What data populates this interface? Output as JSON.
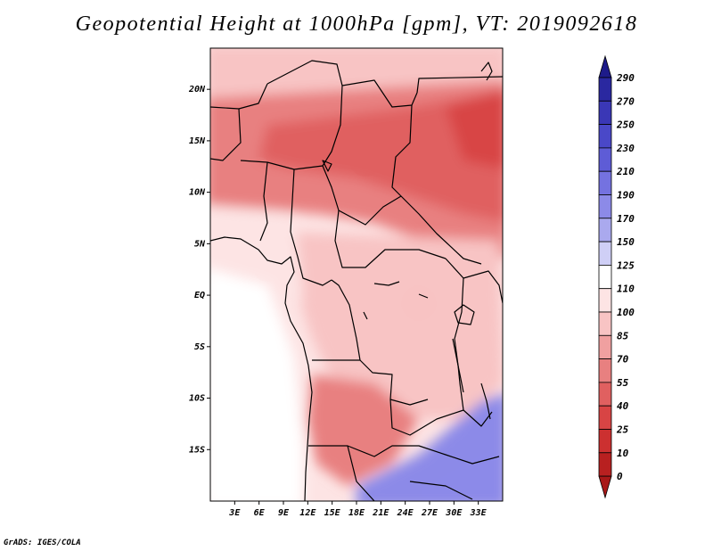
{
  "title": "Geopotential Height at 1000hPa [gpm], VT: 2019092618",
  "credit": "GrADS: IGES/COLA",
  "map": {
    "variable": "Geopotential Height at 1000hPa",
    "units": "gpm",
    "valid_time": "2019092618",
    "lon_range": [
      0,
      36
    ],
    "lat_range": [
      -20,
      24
    ],
    "lat_ticks": [
      {
        "value": 20,
        "label": "20N"
      },
      {
        "value": 15,
        "label": "15N"
      },
      {
        "value": 10,
        "label": "10N"
      },
      {
        "value": 5,
        "label": "5N"
      },
      {
        "value": 0,
        "label": "EQ"
      },
      {
        "value": -5,
        "label": "5S"
      },
      {
        "value": -10,
        "label": "10S"
      },
      {
        "value": -15,
        "label": "15S"
      }
    ],
    "lon_ticks": [
      {
        "value": 3,
        "label": "3E"
      },
      {
        "value": 6,
        "label": "6E"
      },
      {
        "value": 9,
        "label": "9E"
      },
      {
        "value": 12,
        "label": "12E"
      },
      {
        "value": 15,
        "label": "15E"
      },
      {
        "value": 18,
        "label": "18E"
      },
      {
        "value": 21,
        "label": "21E"
      },
      {
        "value": 24,
        "label": "24E"
      },
      {
        "value": 27,
        "label": "27E"
      },
      {
        "value": 30,
        "label": "30E"
      },
      {
        "value": 33,
        "label": "33E"
      }
    ]
  },
  "colorbar": {
    "levels": [
      {
        "label": "290",
        "color": "#1e1b8a"
      },
      {
        "label": "270",
        "color": "#2a28a0"
      },
      {
        "label": "250",
        "color": "#3a37b6"
      },
      {
        "label": "230",
        "color": "#4a48c8"
      },
      {
        "label": "210",
        "color": "#5e5cd6"
      },
      {
        "label": "190",
        "color": "#7472e0"
      },
      {
        "label": "170",
        "color": "#8c8ae8"
      },
      {
        "label": "150",
        "color": "#aaa9ee"
      },
      {
        "label": "125",
        "color": "#cfcff6"
      },
      {
        "label": "110",
        "color": "#ffffff"
      },
      {
        "label": "100",
        "color": "#fde4e4"
      },
      {
        "label": "85",
        "color": "#f8c4c4"
      },
      {
        "label": "70",
        "color": "#f0a0a0"
      },
      {
        "label": "55",
        "color": "#e88080"
      },
      {
        "label": "40",
        "color": "#e06060"
      },
      {
        "label": "25",
        "color": "#d84444"
      },
      {
        "label": "10",
        "color": "#cc3030"
      },
      {
        "label": "0",
        "color": "#b82020"
      }
    ],
    "end_bottom_color": "#a81818"
  },
  "regions": [
    {
      "name": "sahara-north-strip",
      "color": "#f8c4c4"
    },
    {
      "name": "sahel-band",
      "color": "#e88080"
    },
    {
      "name": "chad-sudan-core",
      "color": "#e06060"
    },
    {
      "name": "sudan-east-low",
      "color": "#d84444"
    },
    {
      "name": "congo-basin",
      "color": "#f8c4c4"
    },
    {
      "name": "gulf-guinea-ocean",
      "color": "#fde4e4"
    },
    {
      "name": "south-atlantic",
      "color": "#ffffff"
    },
    {
      "name": "angola-low",
      "color": "#e88080"
    },
    {
      "name": "southern-high",
      "color": "#8c8ae8"
    }
  ]
}
